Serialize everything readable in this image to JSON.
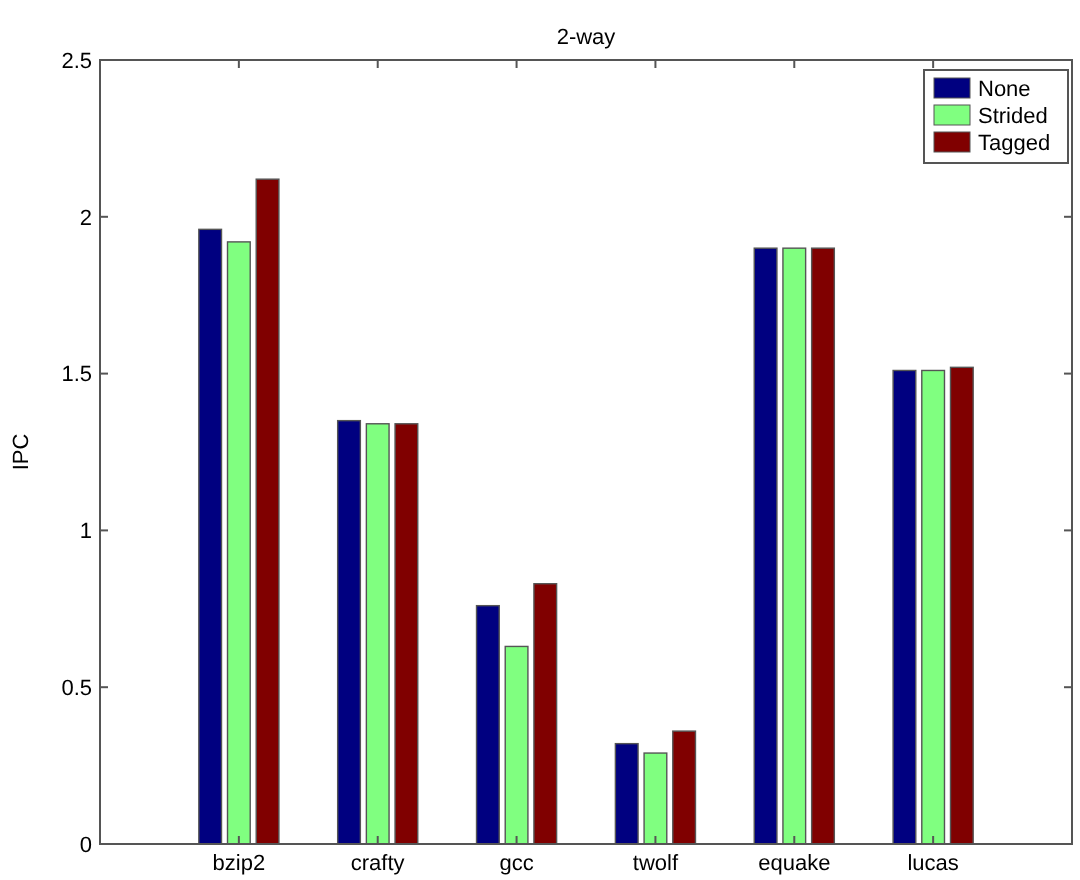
{
  "chart_data": {
    "type": "bar",
    "title": "2-way",
    "ylabel": "IPC",
    "categories": [
      "bzip2",
      "crafty",
      "gcc",
      "twolf",
      "equake",
      "lucas"
    ],
    "series": [
      {
        "name": "None",
        "color": "#000080",
        "values": [
          1.96,
          1.35,
          0.76,
          0.32,
          1.9,
          1.51
        ]
      },
      {
        "name": "Strided",
        "color": "#80ff80",
        "values": [
          1.92,
          1.34,
          0.63,
          0.29,
          1.9,
          1.51
        ]
      },
      {
        "name": "Tagged",
        "color": "#800000",
        "values": [
          2.12,
          1.34,
          0.83,
          0.36,
          1.9,
          1.52
        ]
      }
    ],
    "ylim": [
      0,
      2.5
    ],
    "yticks": [
      0,
      0.5,
      1,
      1.5,
      2,
      2.5
    ],
    "legend": "top right",
    "grid": false
  }
}
